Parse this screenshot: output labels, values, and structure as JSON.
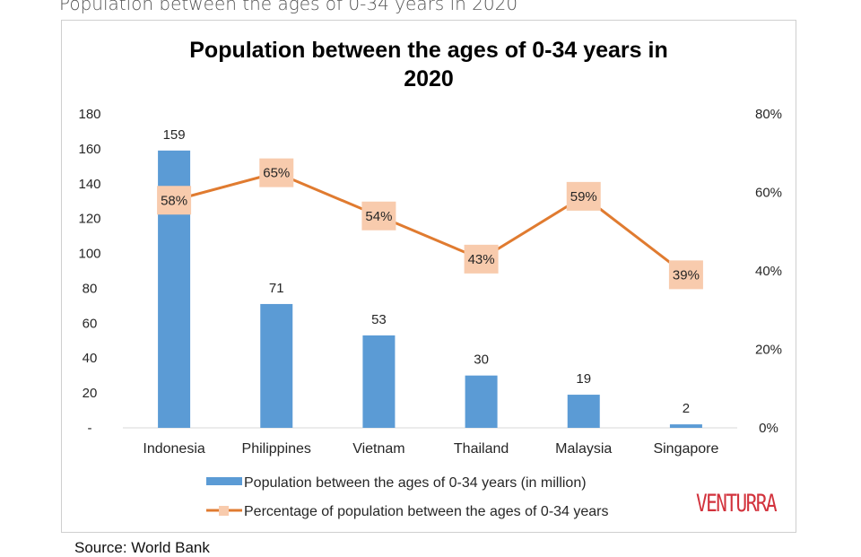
{
  "page": {
    "caption": "Population between the ages of 0-34 years in 2020",
    "source": "Source: World Bank",
    "logo": "VENTURRA"
  },
  "colors": {
    "bar": "#5b9bd5",
    "line": "#e07b30",
    "marker": "#f8cbad",
    "text": "#262626",
    "axis": "#d9d9d9",
    "logo": "#d2323c"
  },
  "chart_data": {
    "type": "bar",
    "title": "Population between the ages of 0-34 years in 2020",
    "categories": [
      "Indonesia",
      "Philippines",
      "Vietnam",
      "Thailand",
      "Malaysia",
      "Singapore"
    ],
    "series": [
      {
        "name": "Population between the ages of 0-34 years (in million)",
        "type": "bar",
        "axis": "left",
        "values": [
          159,
          71,
          53,
          30,
          19,
          2
        ],
        "labels": [
          "159",
          "71",
          "53",
          "30",
          "19",
          "2"
        ]
      },
      {
        "name": "Percentage of population between the ages of 0-34 years",
        "type": "line",
        "axis": "right",
        "values": [
          58,
          65,
          54,
          43,
          59,
          39
        ],
        "labels": [
          "58%",
          "65%",
          "54%",
          "43%",
          "59%",
          "39%"
        ]
      }
    ],
    "y_left": {
      "ylim": [
        0,
        180
      ],
      "ticks": [
        0,
        20,
        40,
        60,
        80,
        100,
        120,
        140,
        160,
        180
      ],
      "tick_labels": [
        "-",
        "20",
        "40",
        "60",
        "80",
        "100",
        "120",
        "140",
        "160",
        "180"
      ]
    },
    "y_right": {
      "ylim": [
        0,
        80
      ],
      "ticks": [
        0,
        20,
        40,
        60,
        80
      ],
      "tick_labels": [
        "0%",
        "20%",
        "40%",
        "60%",
        "80%"
      ]
    },
    "grid": false,
    "legend": "bottom"
  }
}
